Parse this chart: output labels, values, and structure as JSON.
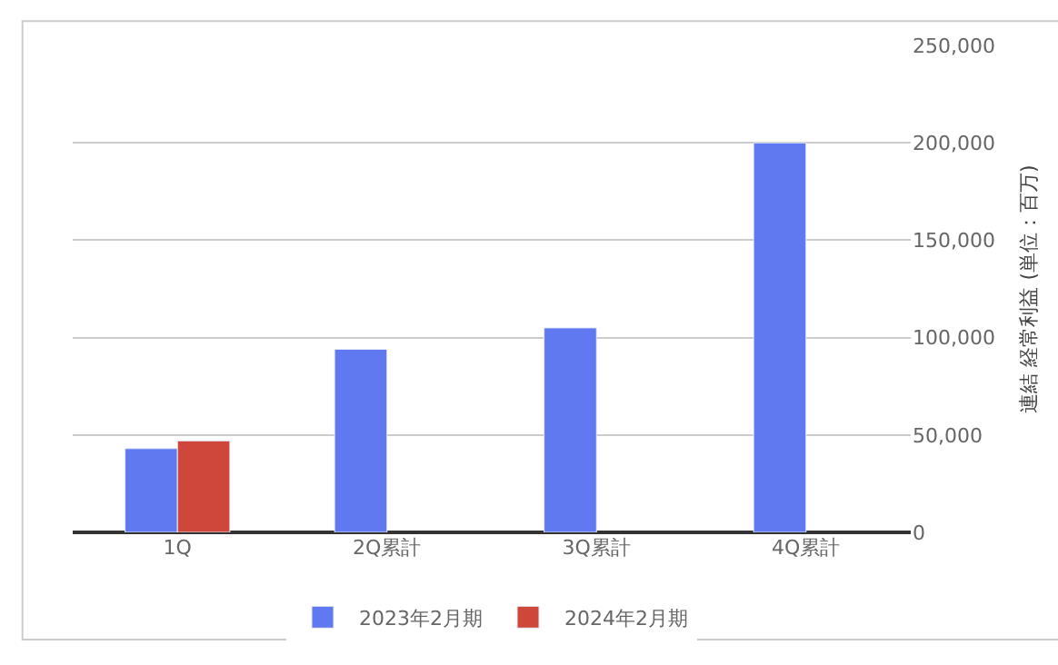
{
  "chart_data": {
    "type": "bar",
    "categories": [
      "1Q",
      "2Q累計",
      "3Q累計",
      "4Q累計"
    ],
    "series": [
      {
        "name": "2023年2月期",
        "color": "#6079f0",
        "values": [
          43000,
          94000,
          105000,
          200000
        ]
      },
      {
        "name": "2024年2月期",
        "color": "#cf463b",
        "values": [
          47000,
          null,
          null,
          null
        ]
      }
    ],
    "ylabel": "連結 経常利益 (単位：百万)",
    "ylim": [
      0,
      250000
    ],
    "yticks": [
      {
        "value": 0,
        "label": "0"
      },
      {
        "value": 50000,
        "label": "50,000"
      },
      {
        "value": 100000,
        "label": "100,000"
      },
      {
        "value": 150000,
        "label": "150,000"
      },
      {
        "value": 200000,
        "label": "200,000"
      },
      {
        "value": 250000,
        "label": "250,000"
      }
    ],
    "grid": "y",
    "legend": "bottom"
  }
}
